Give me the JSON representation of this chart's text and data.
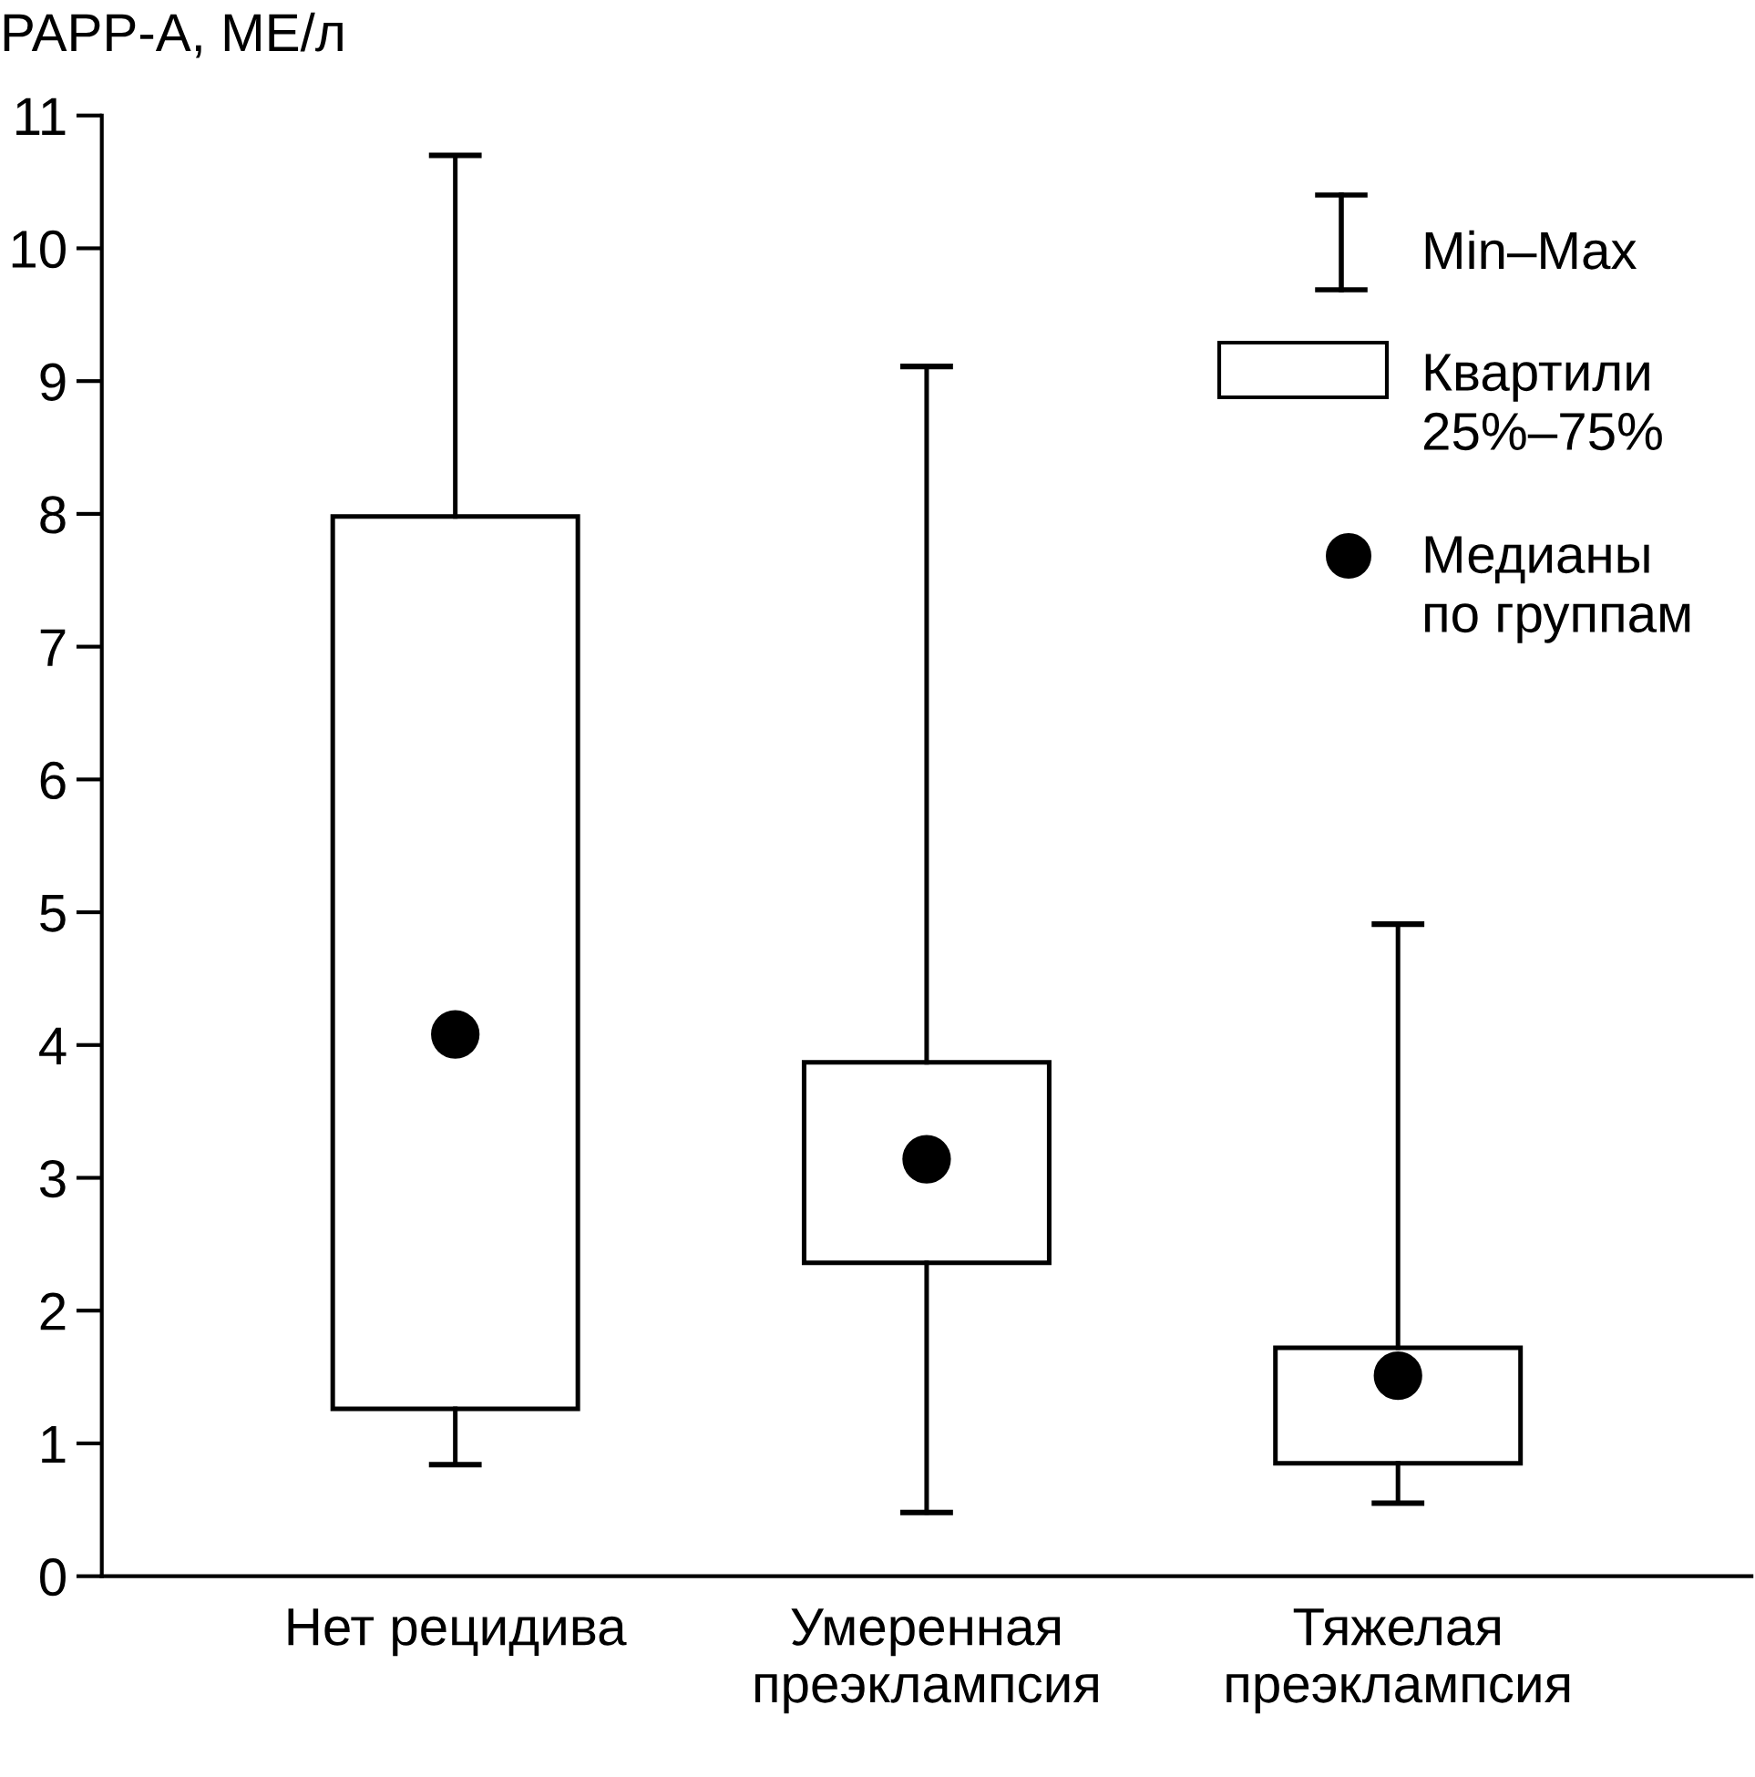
{
  "chart_data": {
    "type": "box",
    "ylabel": "PAPP-A, МЕ/л",
    "categories": [
      "Нет рецидива",
      "Умеренная\nпреэклампсия",
      "Тяжелая\nпреэклампсия"
    ],
    "boxes": [
      {
        "low": 0.84,
        "q1": 1.26,
        "median": 4.08,
        "q3": 7.98,
        "high": 10.7
      },
      {
        "low": 0.48,
        "q1": 2.36,
        "median": 3.14,
        "q3": 3.87,
        "high": 9.11
      },
      {
        "low": 0.55,
        "q1": 0.85,
        "median": 1.51,
        "q3": 1.72,
        "high": 4.91
      }
    ],
    "ylim": [
      0,
      11
    ],
    "yticks": [
      0,
      1,
      2,
      3,
      4,
      5,
      6,
      7,
      8,
      9,
      10,
      11
    ],
    "grid": false,
    "annotations": [
      "Min–Max",
      "Квартили\n25%–75%",
      "Медианы\nпо группам"
    ]
  }
}
